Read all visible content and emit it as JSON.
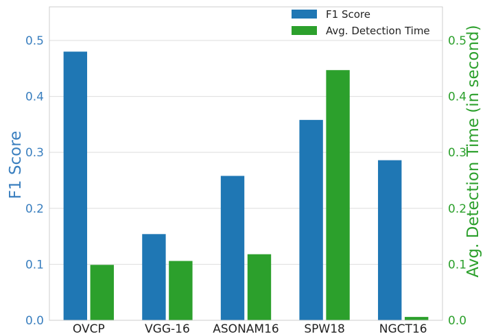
{
  "chart_data": {
    "type": "bar",
    "categories": [
      "OVCP",
      "VGG-16",
      "ASONAM16",
      "SPW18",
      "NGCT16"
    ],
    "series": [
      {
        "name": "F1 Score",
        "axis": "left",
        "color": "#1f77b4",
        "values": [
          0.48,
          0.154,
          0.258,
          0.358,
          0.286
        ]
      },
      {
        "name": "Avg. Detection Time",
        "axis": "right",
        "color": "#2ca02c",
        "values": [
          0.099,
          0.106,
          0.118,
          0.447,
          0.006
        ]
      }
    ],
    "ylabel_left": "F1 Score",
    "ylabel_right": "Avg. Detection Time (in second)",
    "ylim_left": [
      0,
      0.56
    ],
    "ylim_right": [
      0,
      0.56
    ],
    "yticks_left": [
      "0.0",
      "0.1",
      "0.2",
      "0.3",
      "0.4",
      "0.5"
    ],
    "yticks_right": [
      "0.0",
      "0.1",
      "0.2",
      "0.3",
      "0.4",
      "0.5"
    ],
    "grid": true,
    "legend_position": "top-right"
  }
}
